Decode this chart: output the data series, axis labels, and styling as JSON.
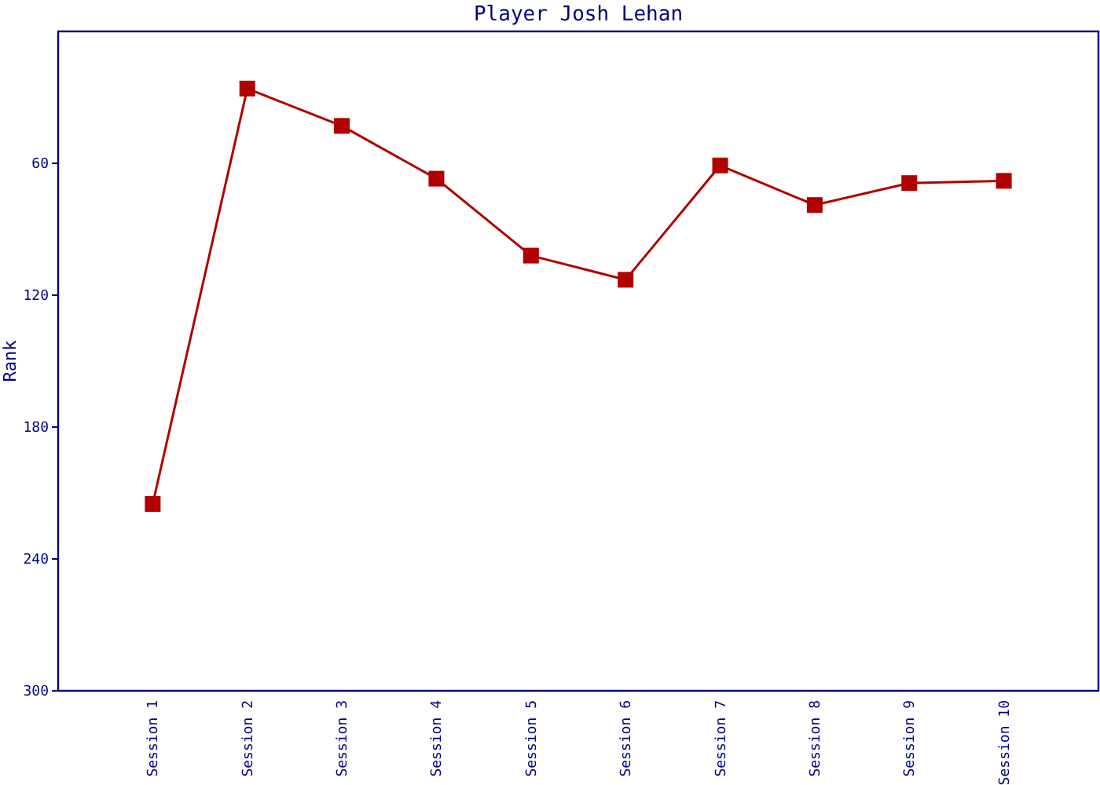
{
  "chart_data": {
    "type": "line",
    "title": "Player Josh Lehan",
    "ylabel": "Rank",
    "categories": [
      "Session 1",
      "Session 2",
      "Session 3",
      "Session 4",
      "Session 5",
      "Session 6",
      "Session 7",
      "Session 8",
      "Session 9",
      "Session 10"
    ],
    "series": [
      {
        "color": "#b00000",
        "values": [
          215,
          26,
          43,
          67,
          102,
          113,
          61,
          79,
          69,
          68
        ]
      }
    ],
    "ylim": [
      300,
      0
    ],
    "yticks": [
      60,
      120,
      180,
      240,
      300
    ],
    "marker": "square",
    "line_style": "solid",
    "grid": false
  }
}
